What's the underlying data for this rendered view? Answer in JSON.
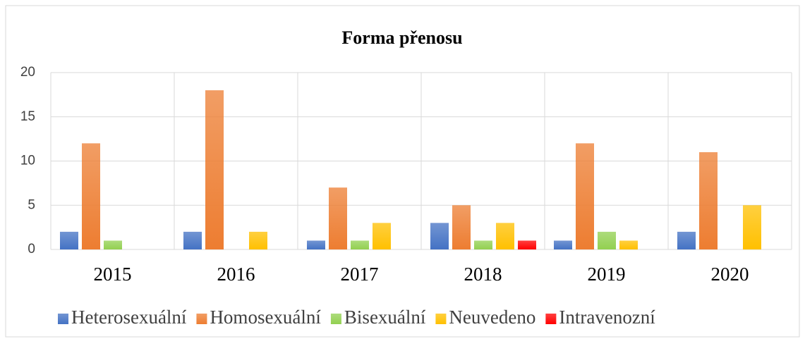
{
  "chart_data": {
    "type": "bar",
    "title": "Forma přenosu",
    "categories": [
      "2015",
      "2016",
      "2017",
      "2018",
      "2019",
      "2020"
    ],
    "series": [
      {
        "name": "Heterosexuální",
        "color": "#4472c4",
        "values": [
          2,
          2,
          1,
          3,
          1,
          2
        ]
      },
      {
        "name": "Homosexuální",
        "color": "#ed7d31",
        "values": [
          12,
          18,
          7,
          5,
          12,
          11
        ]
      },
      {
        "name": "Bisexuální",
        "color": "#92d050",
        "values": [
          1,
          0,
          1,
          1,
          2,
          0
        ]
      },
      {
        "name": "Neuvedeno",
        "color": "#ffc000",
        "values": [
          0,
          2,
          3,
          3,
          1,
          5
        ]
      },
      {
        "name": "Intravenozní",
        "color": "#ff0000",
        "values": [
          0,
          0,
          0,
          1,
          0,
          0
        ]
      }
    ],
    "ylim": [
      0,
      20
    ],
    "yticks": [
      0,
      5,
      10,
      15,
      20
    ],
    "grid": true,
    "legend": "bottom"
  }
}
